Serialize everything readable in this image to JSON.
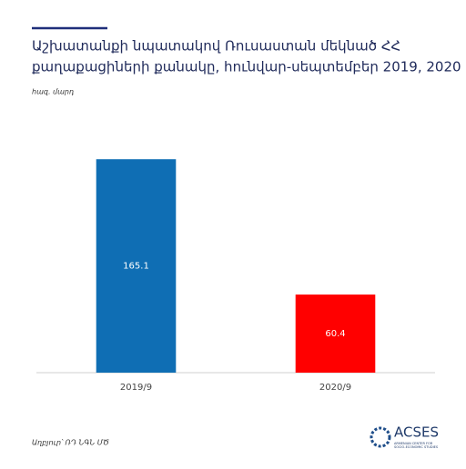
{
  "chart_data": {
    "type": "bar",
    "title": [
      "Աշխատանքի նպատակով Ռուսաստան մեկնած ՀՀ",
      "քաղաքացիների քանակը, հունվար-սեպտեմբեր 2019, 2020"
    ],
    "unit": "հազ. մարդ",
    "categories": [
      "2019/9",
      "2020/9"
    ],
    "values": [
      165.1,
      60.4
    ],
    "colors": [
      "#0f6eb4",
      "#ff0000"
    ],
    "ylim": [
      0,
      180
    ],
    "source": "Աղբյուր՝ ՌԴ ՆԳՆ ՄԾ",
    "logo": {
      "name": "ACSES",
      "subtitle": [
        "ARMENIAN CENTER FOR",
        "SOCIO-ECONOMIC STUDIES"
      ]
    }
  }
}
